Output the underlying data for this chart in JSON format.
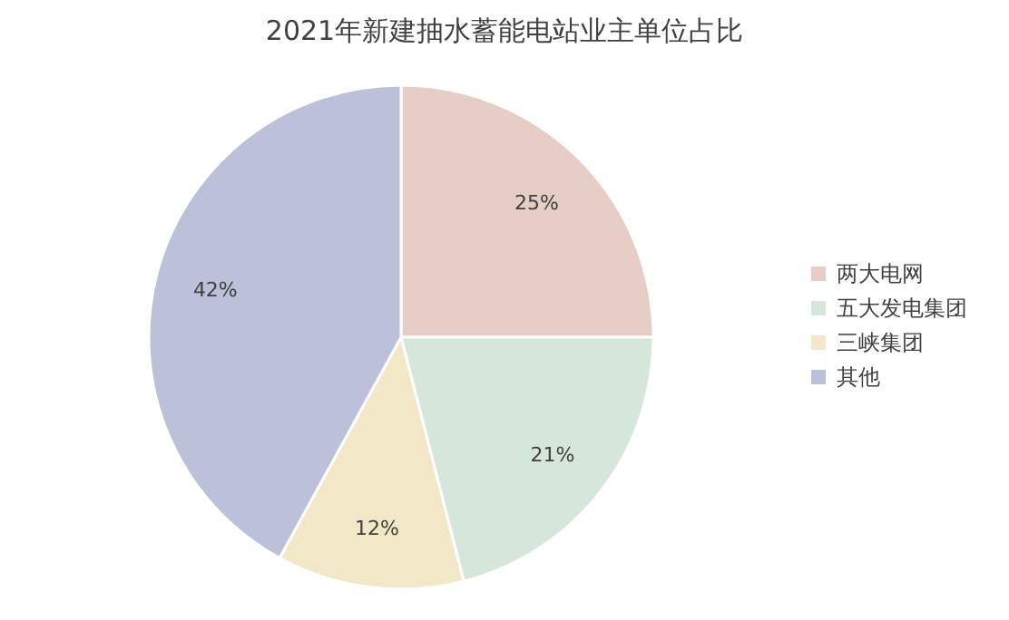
{
  "chart_data": {
    "type": "pie",
    "title": "2021年新建抽水蓄能电站业主单位占比",
    "categories": [
      "两大电网",
      "五大发电集团",
      "三峡集团",
      "其他"
    ],
    "values": [
      25,
      21,
      12,
      42
    ],
    "colors": [
      "#e6cdc5",
      "#d5e6da",
      "#f2e8c8",
      "#bcc0d8"
    ],
    "value_labels": [
      "25%",
      "21%",
      "12%",
      "42%"
    ],
    "legend": "right"
  }
}
